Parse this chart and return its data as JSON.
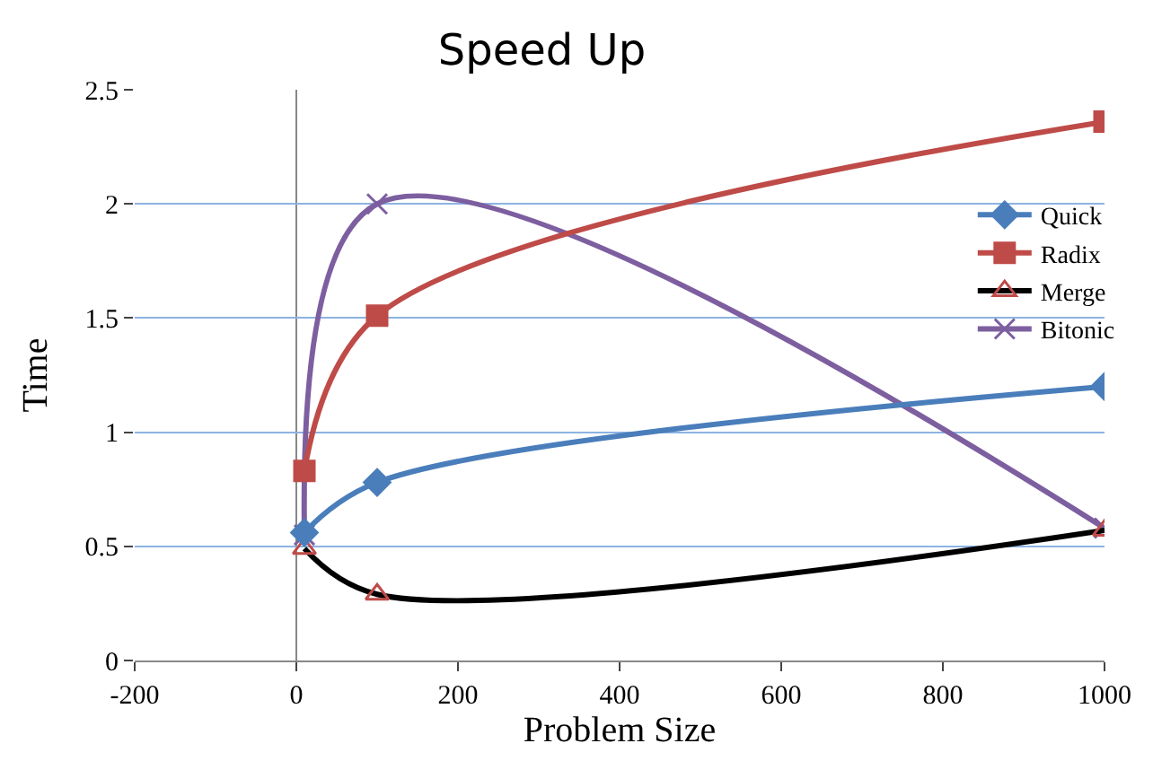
{
  "chart_data": {
    "type": "line",
    "title": "Speed Up",
    "xlabel": "Problem Size",
    "ylabel": "Time",
    "x": [
      10,
      100,
      1000
    ],
    "series": [
      {
        "name": "Quick",
        "color": "#4a7ebb",
        "marker": "diamond",
        "values": [
          0.56,
          0.78,
          1.2
        ]
      },
      {
        "name": "Radix",
        "color": "#be4b48",
        "marker": "square",
        "values": [
          0.83,
          1.51,
          2.36
        ]
      },
      {
        "name": "Merge",
        "color": "#000000",
        "marker": "triangle",
        "values": [
          0.49,
          0.29,
          0.57
        ]
      },
      {
        "name": "Bitonic",
        "color": "#7d5fa0",
        "marker": "cross",
        "values": [
          0.55,
          2.0,
          0.58
        ]
      }
    ],
    "xlim": [
      -200,
      1000
    ],
    "xticks": [
      -200,
      0,
      200,
      400,
      600,
      800,
      1000
    ],
    "ylim": [
      0,
      2.5
    ],
    "yticks": [
      0,
      0.5,
      1,
      1.5,
      2,
      2.5
    ],
    "grid": "y",
    "legend": "right"
  }
}
